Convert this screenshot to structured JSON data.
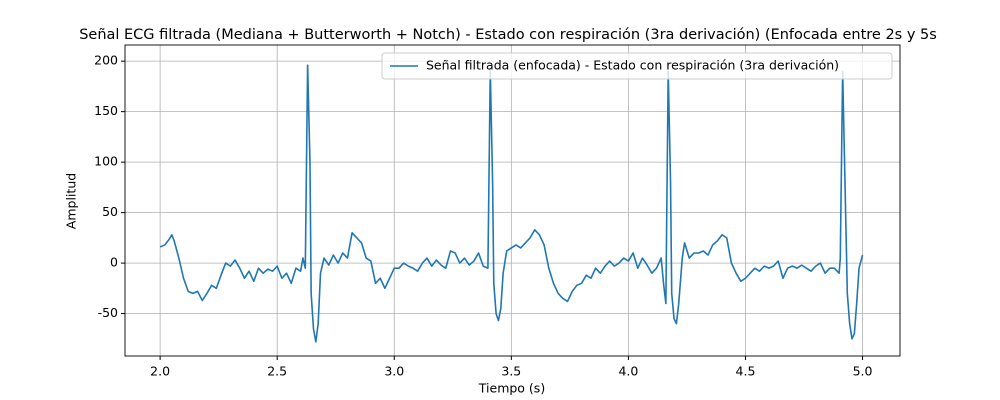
{
  "chart_data": {
    "type": "line",
    "title": "Señal ECG filtrada (Mediana + Butterworth + Notch) - Estado con respiración (3ra derivación) (Enfocada entre 2s y 5s",
    "xlabel": "Tiempo (s)",
    "ylabel": "Amplitud",
    "x": [
      2.0,
      2.02,
      2.04,
      2.05,
      2.06,
      2.08,
      2.1,
      2.12,
      2.14,
      2.16,
      2.18,
      2.2,
      2.22,
      2.24,
      2.26,
      2.28,
      2.3,
      2.32,
      2.34,
      2.36,
      2.38,
      2.4,
      2.42,
      2.44,
      2.46,
      2.48,
      2.5,
      2.52,
      2.54,
      2.56,
      2.58,
      2.6,
      2.61,
      2.62,
      2.63,
      2.64,
      2.645,
      2.655,
      2.665,
      2.675,
      2.685,
      2.7,
      2.72,
      2.74,
      2.76,
      2.78,
      2.8,
      2.82,
      2.84,
      2.86,
      2.88,
      2.9,
      2.92,
      2.94,
      2.96,
      2.98,
      3.0,
      3.02,
      3.04,
      3.06,
      3.08,
      3.1,
      3.12,
      3.14,
      3.16,
      3.18,
      3.2,
      3.22,
      3.24,
      3.26,
      3.28,
      3.3,
      3.32,
      3.34,
      3.36,
      3.38,
      3.4,
      3.41,
      3.42,
      3.425,
      3.435,
      3.445,
      3.455,
      3.465,
      3.48,
      3.5,
      3.52,
      3.54,
      3.56,
      3.58,
      3.6,
      3.62,
      3.64,
      3.66,
      3.68,
      3.7,
      3.72,
      3.74,
      3.76,
      3.78,
      3.8,
      3.82,
      3.84,
      3.86,
      3.88,
      3.9,
      3.92,
      3.94,
      3.96,
      3.98,
      4.0,
      4.02,
      4.04,
      4.06,
      4.08,
      4.1,
      4.12,
      4.14,
      4.15,
      4.16,
      4.17,
      4.18,
      4.185,
      4.195,
      4.205,
      4.215,
      4.23,
      4.24,
      4.26,
      4.28,
      4.3,
      4.32,
      4.34,
      4.36,
      4.38,
      4.4,
      4.42,
      4.44,
      4.46,
      4.48,
      4.5,
      4.52,
      4.54,
      4.56,
      4.58,
      4.6,
      4.62,
      4.64,
      4.66,
      4.68,
      4.7,
      4.72,
      4.74,
      4.76,
      4.78,
      4.8,
      4.82,
      4.84,
      4.86,
      4.88,
      4.9,
      4.905,
      4.915,
      4.925,
      4.935,
      4.945,
      4.955,
      4.965,
      4.975,
      4.985,
      5.0
    ],
    "series": [
      {
        "name": "Señal filtrada (enfocada) - Estado con respiración (3ra derivación)",
        "color": "#1f77b4",
        "values": [
          16,
          18,
          24,
          28,
          22,
          5,
          -15,
          -28,
          -30,
          -28,
          -37,
          -30,
          -22,
          -25,
          -12,
          0,
          -3,
          3,
          -5,
          -15,
          -8,
          -18,
          -5,
          -10,
          -6,
          -8,
          -3,
          -15,
          -10,
          -20,
          -5,
          -8,
          5,
          -5,
          196,
          100,
          -30,
          -65,
          -78,
          -60,
          -10,
          5,
          -2,
          8,
          0,
          10,
          5,
          30,
          25,
          20,
          5,
          2,
          -20,
          -15,
          -25,
          -15,
          -5,
          -5,
          0,
          -3,
          -5,
          -8,
          0,
          5,
          -3,
          3,
          -2,
          -5,
          12,
          10,
          0,
          5,
          -2,
          2,
          10,
          -3,
          -5,
          192,
          80,
          -20,
          -50,
          -57,
          -45,
          -10,
          12,
          15,
          18,
          15,
          20,
          25,
          33,
          28,
          18,
          -5,
          -20,
          -30,
          -35,
          -38,
          -28,
          -22,
          -20,
          -12,
          -15,
          -5,
          -10,
          -3,
          2,
          -3,
          0,
          5,
          2,
          10,
          -5,
          5,
          -2,
          -10,
          -5,
          5,
          -20,
          -40,
          190,
          80,
          -30,
          -55,
          -60,
          -40,
          5,
          20,
          5,
          10,
          10,
          12,
          8,
          18,
          22,
          28,
          25,
          0,
          -10,
          -18,
          -15,
          -10,
          -5,
          -8,
          -3,
          -5,
          -3,
          2,
          -15,
          -5,
          -3,
          -5,
          -2,
          -5,
          -8,
          -3,
          0,
          -10,
          -5,
          -5,
          -10,
          5,
          190,
          80,
          -30,
          -60,
          -75,
          -70,
          -40,
          -5,
          8
        ]
      }
    ],
    "xlim": [
      1.85,
      5.16
    ],
    "ylim": [
      -92,
      216
    ],
    "xticks": [
      {
        "value": 2,
        "label": "2.0"
      },
      {
        "value": 2.5,
        "label": "2.5"
      },
      {
        "value": 3,
        "label": "3.0"
      },
      {
        "value": 3.5,
        "label": "3.5"
      },
      {
        "value": 4,
        "label": "4.0"
      },
      {
        "value": 4.5,
        "label": "4.5"
      },
      {
        "value": 5,
        "label": "5.0"
      }
    ],
    "yticks": [
      -50,
      0,
      50,
      100,
      150,
      200
    ],
    "grid": true,
    "legend": "upper right"
  }
}
